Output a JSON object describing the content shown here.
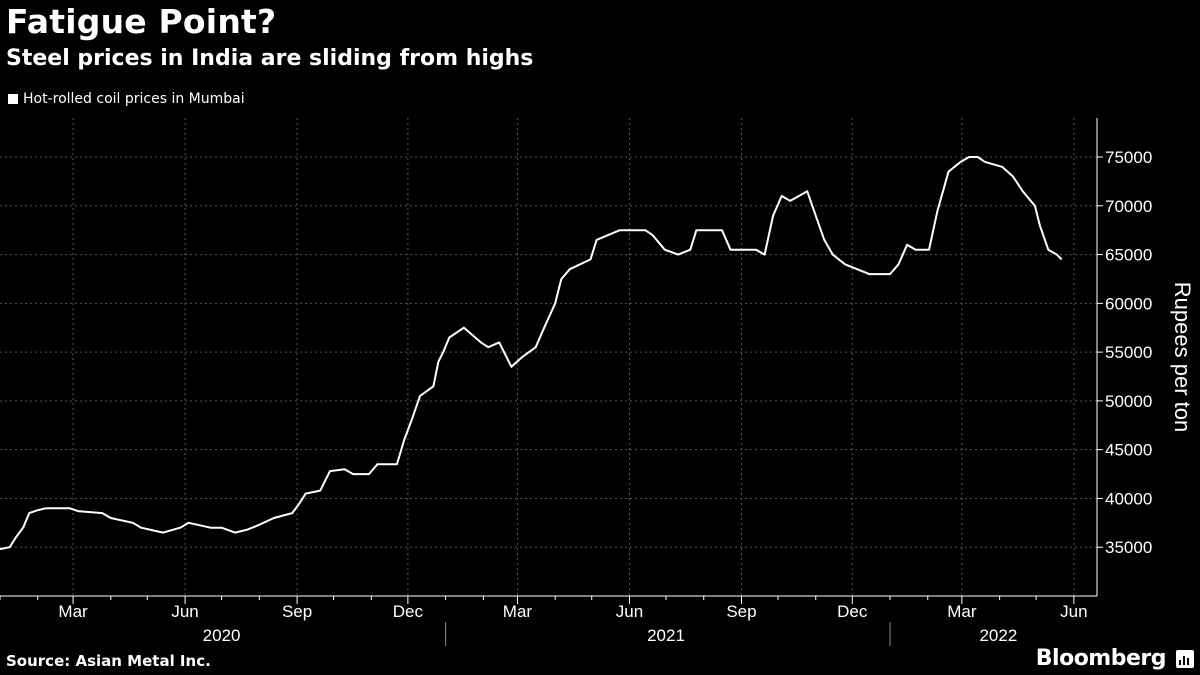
{
  "title": "Fatigue Point?",
  "subtitle": "Steel prices in India are sliding from highs",
  "source": "Source: Asian Metal Inc.",
  "brand": "Bloomberg",
  "brand_icon": "bloomberg-terminal-icon",
  "colors": {
    "background": "#000000",
    "line": "#ffffff",
    "grid": "#555555"
  },
  "chart_data": {
    "type": "line",
    "ylabel": "Rupees per ton",
    "ylim": [
      30000,
      79000
    ],
    "yticks": [
      35000,
      40000,
      45000,
      50000,
      55000,
      60000,
      65000,
      70000,
      75000
    ],
    "xlim": [
      "2020-01-01",
      "2022-06-20"
    ],
    "month_ticks": [
      {
        "date": "2020-03-01",
        "label": "Mar"
      },
      {
        "date": "2020-06-01",
        "label": "Jun"
      },
      {
        "date": "2020-09-01",
        "label": "Sep"
      },
      {
        "date": "2020-12-01",
        "label": "Dec"
      },
      {
        "date": "2021-03-01",
        "label": "Mar"
      },
      {
        "date": "2021-06-01",
        "label": "Jun"
      },
      {
        "date": "2021-09-01",
        "label": "Sep"
      },
      {
        "date": "2021-12-01",
        "label": "Dec"
      },
      {
        "date": "2022-03-01",
        "label": "Mar"
      },
      {
        "date": "2022-06-01",
        "label": "Jun"
      }
    ],
    "minor_ticks": [
      "2020-01-01",
      "2020-02-01",
      "2020-04-01",
      "2020-05-01",
      "2020-07-01",
      "2020-08-01",
      "2020-10-01",
      "2020-11-01",
      "2021-01-01",
      "2021-02-01",
      "2021-04-01",
      "2021-05-01",
      "2021-07-01",
      "2021-08-01",
      "2021-10-01",
      "2021-11-01",
      "2022-01-01",
      "2022-02-01",
      "2022-04-01",
      "2022-05-01"
    ],
    "year_labels": [
      {
        "date": "2020-07-01",
        "label": "2020"
      },
      {
        "date": "2021-07-01",
        "label": "2021"
      },
      {
        "date": "2022-03-31",
        "label": "2022"
      }
    ],
    "year_dividers": [
      "2021-01-01",
      "2022-01-01"
    ],
    "grid": true,
    "legend": "top-left",
    "series": [
      {
        "name": "Hot-rolled coil prices in Mumbai",
        "points": [
          [
            "2020-01-01",
            34800
          ],
          [
            "2020-01-09",
            35000
          ],
          [
            "2020-01-14",
            36000
          ],
          [
            "2020-01-20",
            37000
          ],
          [
            "2020-01-25",
            38500
          ],
          [
            "2020-02-01",
            38800
          ],
          [
            "2020-02-08",
            39000
          ],
          [
            "2020-02-27",
            39000
          ],
          [
            "2020-03-05",
            38700
          ],
          [
            "2020-03-25",
            38500
          ],
          [
            "2020-04-01",
            38000
          ],
          [
            "2020-04-19",
            37500
          ],
          [
            "2020-04-26",
            37000
          ],
          [
            "2020-05-14",
            36500
          ],
          [
            "2020-05-28",
            37000
          ],
          [
            "2020-06-04",
            37500
          ],
          [
            "2020-06-22",
            37000
          ],
          [
            "2020-07-01",
            37000
          ],
          [
            "2020-07-12",
            36500
          ],
          [
            "2020-07-22",
            36800
          ],
          [
            "2020-07-30",
            37200
          ],
          [
            "2020-08-13",
            38000
          ],
          [
            "2020-08-28",
            38500
          ],
          [
            "2020-09-03",
            39500
          ],
          [
            "2020-09-08",
            40500
          ],
          [
            "2020-09-20",
            40800
          ],
          [
            "2020-09-28",
            42800
          ],
          [
            "2020-10-10",
            43000
          ],
          [
            "2020-10-17",
            42500
          ],
          [
            "2020-10-30",
            42500
          ],
          [
            "2020-11-06",
            43500
          ],
          [
            "2020-11-22",
            43500
          ],
          [
            "2020-11-28",
            46000
          ],
          [
            "2020-12-04",
            48000
          ],
          [
            "2020-12-11",
            50500
          ],
          [
            "2020-12-22",
            51500
          ],
          [
            "2020-12-26",
            54000
          ],
          [
            "2020-12-30",
            55000
          ],
          [
            "2021-01-04",
            56500
          ],
          [
            "2021-01-16",
            57500
          ],
          [
            "2021-01-30",
            56000
          ],
          [
            "2021-02-05",
            55500
          ],
          [
            "2021-02-14",
            56000
          ],
          [
            "2021-02-24",
            53500
          ],
          [
            "2021-03-05",
            54500
          ],
          [
            "2021-03-16",
            55500
          ],
          [
            "2021-03-23",
            57500
          ],
          [
            "2021-04-01",
            60000
          ],
          [
            "2021-04-06",
            62500
          ],
          [
            "2021-04-13",
            63500
          ],
          [
            "2021-04-30",
            64500
          ],
          [
            "2021-05-05",
            66500
          ],
          [
            "2021-05-24",
            67500
          ],
          [
            "2021-06-14",
            67500
          ],
          [
            "2021-06-20",
            67000
          ],
          [
            "2021-06-30",
            65500
          ],
          [
            "2021-07-11",
            65000
          ],
          [
            "2021-07-21",
            65500
          ],
          [
            "2021-07-26",
            67500
          ],
          [
            "2021-08-16",
            67500
          ],
          [
            "2021-08-23",
            65500
          ],
          [
            "2021-09-13",
            65500
          ],
          [
            "2021-09-20",
            65000
          ],
          [
            "2021-09-27",
            69000
          ],
          [
            "2021-10-04",
            71000
          ],
          [
            "2021-10-11",
            70500
          ],
          [
            "2021-10-25",
            71500
          ],
          [
            "2021-11-01",
            69000
          ],
          [
            "2021-11-08",
            66500
          ],
          [
            "2021-11-15",
            65000
          ],
          [
            "2021-11-25",
            64000
          ],
          [
            "2021-12-05",
            63500
          ],
          [
            "2021-12-15",
            63000
          ],
          [
            "2022-01-01",
            63000
          ],
          [
            "2022-01-08",
            64000
          ],
          [
            "2022-01-15",
            66000
          ],
          [
            "2022-01-22",
            65500
          ],
          [
            "2022-02-02",
            65500
          ],
          [
            "2022-02-09",
            69500
          ],
          [
            "2022-02-18",
            73500
          ],
          [
            "2022-02-28",
            74500
          ],
          [
            "2022-03-07",
            75000
          ],
          [
            "2022-03-14",
            75000
          ],
          [
            "2022-03-20",
            74500
          ],
          [
            "2022-04-03",
            74000
          ],
          [
            "2022-04-12",
            73000
          ],
          [
            "2022-04-20",
            71500
          ],
          [
            "2022-04-30",
            70000
          ],
          [
            "2022-05-04",
            68000
          ],
          [
            "2022-05-11",
            65500
          ],
          [
            "2022-05-18",
            65000
          ],
          [
            "2022-05-22",
            64500
          ]
        ]
      }
    ]
  }
}
